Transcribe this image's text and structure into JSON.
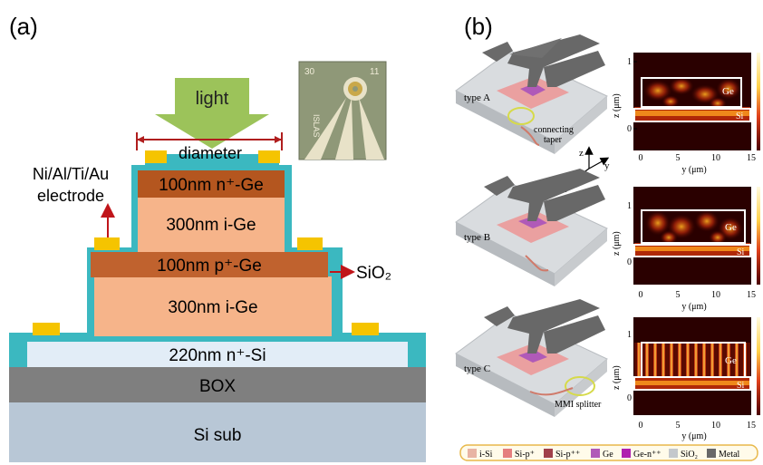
{
  "panel_a": {
    "label": "(a)",
    "layers": {
      "si_sub": "Si sub",
      "box": "BOX",
      "si_n": "220nm n⁺-Si",
      "ige_bottom": "300nm  i-Ge",
      "pge": "100nm  p⁺-Ge",
      "ige_top": "300nm  i-Ge",
      "nge": "100nm  n⁺-Ge"
    },
    "light_label": "light",
    "diameter_label": "diameter",
    "electrode_label_line1": "Ni/Al/Ti/Au",
    "electrode_label_line2": "electrode",
    "sio2_label": "SiO₂",
    "inset": {
      "left_digits": "30",
      "right_digits": "11",
      "side_text": "ISLAS"
    }
  },
  "panel_b": {
    "label": "(b)",
    "devices": [
      {
        "type_label": "type A",
        "annotation_line1": "connecting",
        "annotation_line2": "taper"
      },
      {
        "type_label": "type B"
      },
      {
        "type_label": "type C",
        "annotation_line1": "MMI splitter"
      }
    ],
    "axes3d": {
      "z": "z",
      "y": "y",
      "x": "x"
    },
    "maps": [
      {
        "ylabel": "z (μm)",
        "xlabel": "y (μm)",
        "ge_label": "Ge",
        "si_label": "Si",
        "yticks": [
          "1",
          "0"
        ],
        "xticks": [
          "0",
          "5",
          "10",
          "15"
        ]
      },
      {
        "ylabel": "z (μm)",
        "xlabel": "y (μm)",
        "ge_label": "Ge",
        "si_label": "Si",
        "yticks": [
          "1",
          "0"
        ],
        "xticks": [
          "0",
          "5",
          "10",
          "15"
        ]
      },
      {
        "ylabel": "z (μm)",
        "xlabel": "y (μm)",
        "ge_label": "Ge",
        "si_label": "Si",
        "yticks": [
          "1",
          "0"
        ],
        "xticks": [
          "0",
          "5",
          "10",
          "15"
        ]
      }
    ],
    "legend": [
      {
        "label": "i-Si",
        "color": "#e8b4a4"
      },
      {
        "label": "Si-p⁺",
        "color": "#e57f7f"
      },
      {
        "label": "Si-p⁺⁺",
        "color": "#a0404a"
      },
      {
        "label": "Ge",
        "color": "#b05ab8"
      },
      {
        "label": "Ge-n⁺⁺",
        "color": "#b020b0"
      },
      {
        "label": "SiO₂",
        "color": "#c4c8cc"
      },
      {
        "label": "Metal",
        "color": "#686868"
      }
    ]
  },
  "colors": {
    "si_sub": "#b8c7d6",
    "box": "#7f7f7f",
    "si_n": "#e2edf7",
    "ige": "#f6b48a",
    "pge": "#c0622e",
    "nge": "#b4561f",
    "sio2": "#3bb8c0",
    "electrode": "#f5c400",
    "light_arrow": "#9cc35a",
    "diameter_line": "#b01e1e",
    "annotation_arrow": "#c0151a"
  }
}
